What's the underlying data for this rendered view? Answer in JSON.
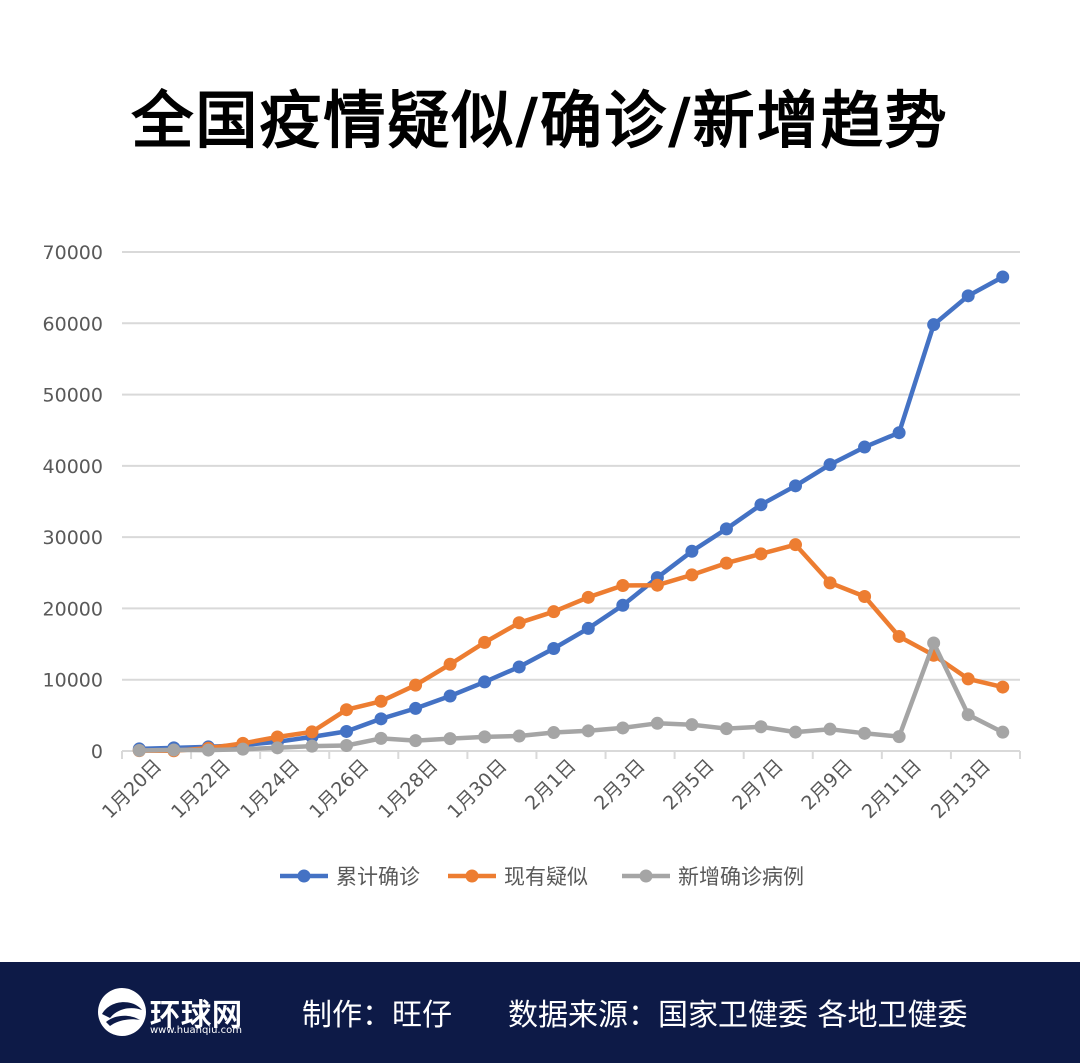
{
  "title": "全国疫情疑似/确诊/新增趋势",
  "chart_data": {
    "type": "line",
    "ylim": [
      0,
      70000
    ],
    "yticks": [
      0,
      10000,
      20000,
      30000,
      40000,
      50000,
      60000,
      70000
    ],
    "grid": true,
    "legend_position": "bottom",
    "categories": [
      "1月20日",
      "1月21日",
      "1月22日",
      "1月23日",
      "1月24日",
      "1月25日",
      "1月26日",
      "1月27日",
      "1月28日",
      "1月29日",
      "1月30日",
      "1月31日",
      "2月1日",
      "2月2日",
      "2月3日",
      "2月4日",
      "2月5日",
      "2月6日",
      "2月7日",
      "2月8日",
      "2月9日",
      "2月10日",
      "2月11日",
      "2月12日",
      "2月13日",
      "2月14日"
    ],
    "tick_labels": [
      "1月20日",
      "",
      "1月22日",
      "",
      "1月24日",
      "",
      "1月26日",
      "",
      "1月28日",
      "",
      "1月30日",
      "",
      "2月1日",
      "",
      "2月3日",
      "",
      "2月5日",
      "",
      "2月7日",
      "",
      "2月9日",
      "",
      "2月11日",
      "",
      "2月13日",
      ""
    ],
    "series": [
      {
        "name": "累计确诊",
        "color": "#4472c4",
        "values": [
          291,
          440,
          571,
          830,
          1287,
          1975,
          2744,
          4515,
          5974,
          7711,
          9692,
          11791,
          14380,
          17205,
          20438,
          24324,
          28018,
          31161,
          34546,
          37198,
          40171,
          42638,
          44653,
          59804,
          63851,
          66492
        ]
      },
      {
        "name": "现有疑似",
        "color": "#ed7d31",
        "values": [
          54,
          37,
          393,
          1072,
          1965,
          2684,
          5794,
          6973,
          9239,
          12167,
          15238,
          17988,
          19544,
          21558,
          23214,
          23260,
          24702,
          26359,
          27657,
          28942,
          23589,
          21675,
          16067,
          13435,
          10109,
          8969
        ]
      },
      {
        "name": "新增确诊病例",
        "color": "#a5a5a5",
        "values": [
          77,
          149,
          131,
          259,
          444,
          688,
          769,
          1771,
          1459,
          1737,
          1982,
          2102,
          2590,
          2829,
          3235,
          3887,
          3694,
          3143,
          3399,
          2656,
          3062,
          2478,
          2015,
          15152,
          5090,
          2641
        ]
      }
    ]
  },
  "footer": {
    "logo_text": "环球网",
    "logo_url": "www.huanqiu.com",
    "maker": "制作：旺仔",
    "source": "数据来源：国家卫健委 各地卫健委"
  },
  "colors": {
    "footer_bg": "#0d1a47",
    "grid": "#d9d9d9",
    "axis_text": "#595959"
  }
}
